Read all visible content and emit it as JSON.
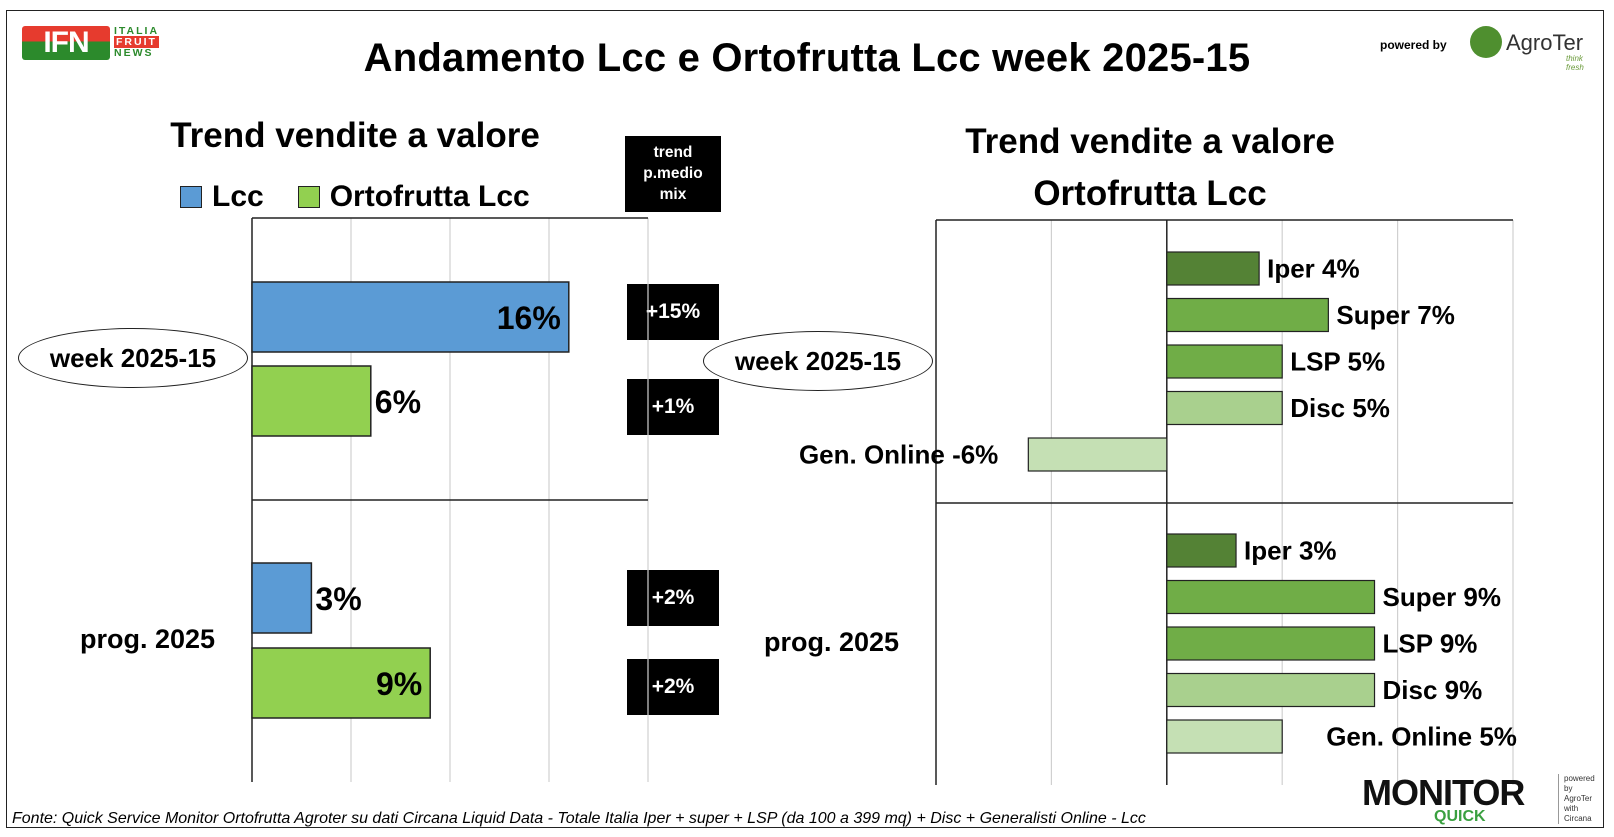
{
  "header": {
    "title": "Andamento Lcc e Ortofrutta Lcc week 2025-15",
    "powered_by": "powered by",
    "ifn_logo": {
      "mark": "IFN",
      "line1": "ITALIA",
      "line2": "FRUIT",
      "line3": "NEWS"
    },
    "agroter_logo": {
      "name": "AgroTer",
      "tagline": "think fresh"
    }
  },
  "left_panel": {
    "subtitle": "Trend vendite a valore",
    "trend_header": [
      "trend",
      "p.medio",
      "mix"
    ],
    "row_labels": [
      "week 2025-15",
      "prog. 2025"
    ]
  },
  "right_panel": {
    "subtitle_line1": "Trend vendite a valore",
    "subtitle_line2": "Ortofrutta Lcc",
    "row_labels": [
      "week 2025-15",
      "prog. 2025"
    ]
  },
  "chart_data": [
    {
      "type": "bar",
      "orientation": "horizontal",
      "title": "Trend vendite a valore",
      "categories": [
        "week 2025-15",
        "prog. 2025"
      ],
      "series": [
        {
          "name": "Lcc",
          "color": "#5b9bd5",
          "values": [
            16,
            3
          ],
          "labels": [
            "16%",
            "3%"
          ]
        },
        {
          "name": "Ortofrutta Lcc",
          "color": "#92d050",
          "values": [
            6,
            9
          ],
          "labels": [
            "6%",
            "9%"
          ]
        }
      ],
      "trend_p_medio_mix": [
        "+15%",
        "+1%",
        "+2%",
        "+2%"
      ],
      "xlim": [
        0,
        20
      ],
      "grid": true,
      "legend": "top"
    },
    {
      "type": "bar",
      "orientation": "horizontal",
      "title": "Trend vendite a valore Ortofrutta Lcc",
      "groups": [
        {
          "label": "week 2025-15",
          "bars": [
            {
              "name": "Iper",
              "value": 4,
              "label": "Iper 4%",
              "color": "#548235"
            },
            {
              "name": "Super",
              "value": 7,
              "label": "Super 7%",
              "color": "#70ad47"
            },
            {
              "name": "LSP",
              "value": 5,
              "label": "LSP 5%",
              "color": "#70ad47"
            },
            {
              "name": "Disc",
              "value": 5,
              "label": "Disc 5%",
              "color": "#a9d08e"
            },
            {
              "name": "Gen. Online",
              "value": -6,
              "label": "Gen. Online -6%",
              "color": "#c5e0b4"
            }
          ]
        },
        {
          "label": "prog. 2025",
          "bars": [
            {
              "name": "Iper",
              "value": 3,
              "label": "Iper 3%",
              "color": "#548235"
            },
            {
              "name": "Super",
              "value": 9,
              "label": "Super 9%",
              "color": "#70ad47"
            },
            {
              "name": "LSP",
              "value": 9,
              "label": "LSP 9%",
              "color": "#70ad47"
            },
            {
              "name": "Disc",
              "value": 9,
              "label": "Disc 9%",
              "color": "#a9d08e"
            },
            {
              "name": "Gen. Online",
              "value": 5,
              "label": "Gen. Online 5%",
              "color": "#c5e0b4"
            }
          ]
        }
      ],
      "xlim": [
        -10,
        15
      ],
      "grid": true
    }
  ],
  "footer": {
    "source": "Fonte: Quick Service Monitor Ortofrutta Agroter su dati Circana Liquid Data - Totale Italia Iper + super + LSP (da 100 a 399 mq) + Disc + Generalisti Online - Lcc"
  },
  "monitor_logo": {
    "main": "MONITOR",
    "sub": "QUICK",
    "side1": "powered by",
    "side2": "AgroTer",
    "side3": "with",
    "side4": "Circana"
  }
}
